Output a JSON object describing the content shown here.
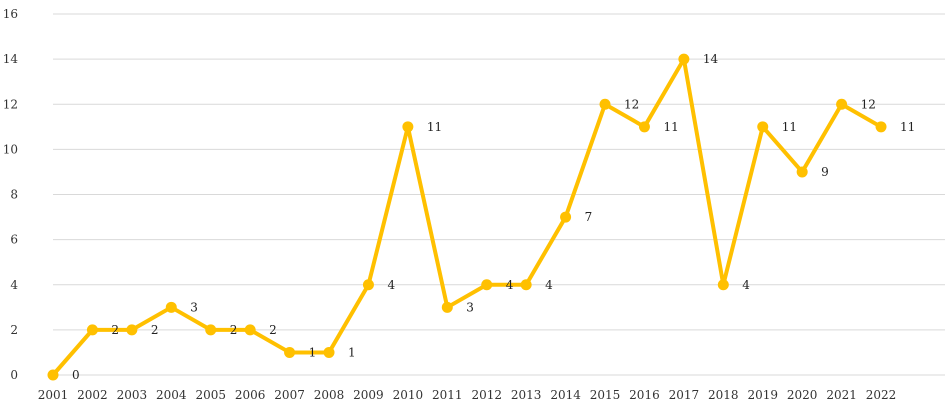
{
  "chart_data": {
    "type": "line",
    "title": "",
    "xlabel": "",
    "ylabel": "",
    "x": [
      "2001",
      "2002",
      "2003",
      "2004",
      "2005",
      "2006",
      "2007",
      "2008",
      "2009",
      "2010",
      "2011",
      "2012",
      "2013",
      "2014",
      "2015",
      "2016",
      "2017",
      "2018",
      "2019",
      "2020",
      "2021",
      "2022"
    ],
    "series": [
      {
        "values": [
          0,
          2,
          2,
          3,
          2,
          2,
          1,
          1,
          4,
          11,
          3,
          4,
          4,
          7,
          12,
          11,
          14,
          4,
          11,
          9,
          12,
          11
        ],
        "color": "#FFC000"
      }
    ],
    "ylim": [
      0,
      16
    ],
    "yticks": [
      0,
      2,
      4,
      6,
      8,
      10,
      12,
      14,
      16
    ],
    "grid": "horizontal",
    "legend": "none",
    "data_labels": true
  }
}
